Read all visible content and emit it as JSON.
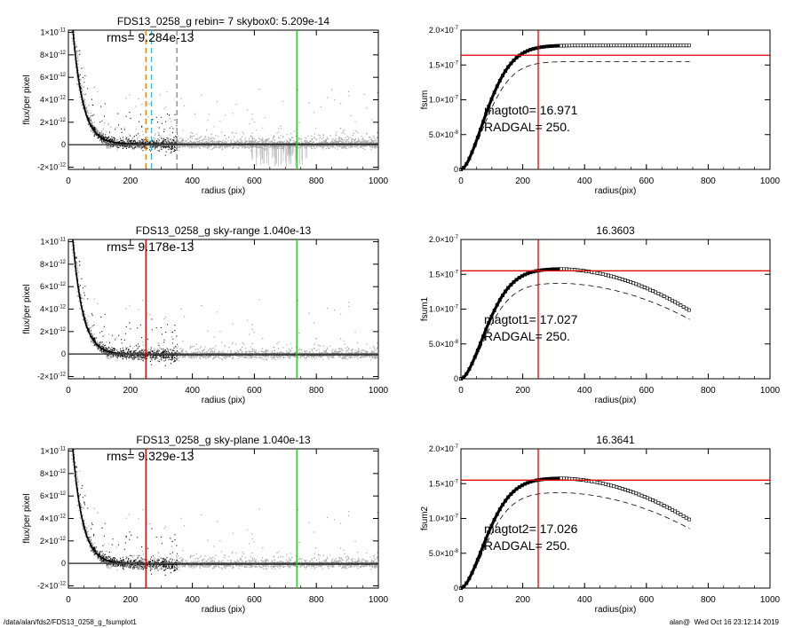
{
  "footer": {
    "path": "/data/alan/fds2/FDS13_0258_g_fsumplot1",
    "stamp": "alan@  Wed Oct 16 23:12:14 2019"
  },
  "chart_data": [
    {
      "type": "scatter",
      "title": "FDS13_0258_g rebin= 7    skybox0:  5.209e-14",
      "annotation": "rms= 9.284e-13",
      "xlabel": "radius (pix)",
      "ylabel": "flux/per pixel",
      "xlim": [
        0,
        1000
      ],
      "ylim": [
        -2.2e-12,
        1.02e-11
      ],
      "xticks": [
        "0",
        "200",
        "400",
        "600",
        "800",
        "1000"
      ],
      "yticks": [
        {
          "value": -2e-12,
          "mant": "-2×10",
          "exp": "-12"
        },
        {
          "value": 0,
          "mant": "0",
          "exp": ""
        },
        {
          "value": 2e-12,
          "mant": "2×10",
          "exp": "-12"
        },
        {
          "value": 4e-12,
          "mant": "4×10",
          "exp": "-12"
        },
        {
          "value": 6e-12,
          "mant": "6×10",
          "exp": "-12"
        },
        {
          "value": 8e-12,
          "mant": "8×10",
          "exp": "-12"
        },
        {
          "value": 1e-11,
          "mant": "1×10",
          "exp": "-11"
        }
      ],
      "profile": {
        "scale_length": 32,
        "amplitude": 1.6e-11,
        "offset": 5.2e-14
      },
      "vlines": [
        {
          "x": 250,
          "color": "#e07b00",
          "style": "dashed"
        },
        {
          "x": 268,
          "color": "#3bb8c9",
          "style": "dashed"
        },
        {
          "x": 350,
          "color": "#808080",
          "style": "dashed"
        },
        {
          "x": 737,
          "color": "#22cc22",
          "style": "solid"
        }
      ],
      "negative_spikes": true
    },
    {
      "type": "line",
      "title": "",
      "ylabel": "fsum",
      "xlabel": "radius(pix)",
      "xlim": [
        0,
        1000
      ],
      "ylim": [
        0,
        2e-07
      ],
      "xticks": [
        "0",
        "200",
        "400",
        "600",
        "800",
        "1000"
      ],
      "yticks": [
        {
          "value": 0,
          "mant": "0",
          "exp": ""
        },
        {
          "value": 5e-08,
          "mant": "5.0×10",
          "exp": "-8"
        },
        {
          "value": 1e-07,
          "mant": "1.0×10",
          "exp": "-7"
        },
        {
          "value": 1.5e-07,
          "mant": "1.5×10",
          "exp": "-7"
        },
        {
          "value": 2e-07,
          "mant": "2.0×10",
          "exp": "-7"
        }
      ],
      "curve": {
        "x_end": 740,
        "plateau": 1.78e-07,
        "decline": 0.0
      },
      "dashed_scale": 0.87,
      "hline": 1.64e-07,
      "vline": 250,
      "label1": "magtot0=  16.971",
      "label2": "RADGAL=    250."
    },
    {
      "type": "scatter",
      "title": "FDS13_0258_g sky-range  1.040e-13",
      "annotation": "rms= 9.178e-13",
      "xlabel": "radius (pix)",
      "ylabel": "flux/per pixel",
      "xlim": [
        0,
        1000
      ],
      "ylim": [
        -2.2e-12,
        1.02e-11
      ],
      "xticks": [
        "0",
        "200",
        "400",
        "600",
        "800",
        "1000"
      ],
      "yticks": [
        {
          "value": -2e-12,
          "mant": "-2×10",
          "exp": "-12"
        },
        {
          "value": 0,
          "mant": "0",
          "exp": ""
        },
        {
          "value": 2e-12,
          "mant": "2×10",
          "exp": "-12"
        },
        {
          "value": 4e-12,
          "mant": "4×10",
          "exp": "-12"
        },
        {
          "value": 6e-12,
          "mant": "6×10",
          "exp": "-12"
        },
        {
          "value": 8e-12,
          "mant": "8×10",
          "exp": "-12"
        },
        {
          "value": 1e-11,
          "mant": "1×10",
          "exp": "-11"
        }
      ],
      "profile": {
        "scale_length": 32,
        "amplitude": 1.6e-11,
        "offset": -5e-14
      },
      "vlines": [
        {
          "x": 250,
          "color": "#dd0000",
          "style": "solid"
        },
        {
          "x": 737,
          "color": "#22cc22",
          "style": "solid"
        }
      ],
      "negative_spikes": false
    },
    {
      "type": "line",
      "title": "16.3603",
      "ylabel": "fsum1",
      "xlabel": "radius(pix)",
      "xlim": [
        0,
        1000
      ],
      "ylim": [
        0,
        2e-07
      ],
      "xticks": [
        "0",
        "200",
        "400",
        "600",
        "800",
        "1000"
      ],
      "yticks": [
        {
          "value": 0,
          "mant": "0",
          "exp": ""
        },
        {
          "value": 5e-08,
          "mant": "5.0×10",
          "exp": "-8"
        },
        {
          "value": 1e-07,
          "mant": "1.0×10",
          "exp": "-7"
        },
        {
          "value": 1.5e-07,
          "mant": "1.5×10",
          "exp": "-7"
        },
        {
          "value": 2e-07,
          "mant": "2.0×10",
          "exp": "-7"
        }
      ],
      "curve": {
        "x_end": 740,
        "plateau": 1.58e-07,
        "decline": 6e-08
      },
      "dashed_scale": 0.87,
      "hline": 1.55e-07,
      "vline": 250,
      "label1": "magtot1=  17.027",
      "label2": "RADGAL=    250."
    },
    {
      "type": "scatter",
      "title": "FDS13_0258_g sky-plane  1.040e-13",
      "annotation": "rms= 9.329e-13",
      "xlabel": "radius (pix)",
      "ylabel": "flux/per pixel",
      "xlim": [
        0,
        1000
      ],
      "ylim": [
        -2.2e-12,
        1.02e-11
      ],
      "xticks": [
        "0",
        "200",
        "400",
        "600",
        "800",
        "1000"
      ],
      "yticks": [
        {
          "value": -2e-12,
          "mant": "-2×10",
          "exp": "-12"
        },
        {
          "value": 0,
          "mant": "0",
          "exp": ""
        },
        {
          "value": 2e-12,
          "mant": "2×10",
          "exp": "-12"
        },
        {
          "value": 4e-12,
          "mant": "4×10",
          "exp": "-12"
        },
        {
          "value": 6e-12,
          "mant": "6×10",
          "exp": "-12"
        },
        {
          "value": 8e-12,
          "mant": "8×10",
          "exp": "-12"
        },
        {
          "value": 1e-11,
          "mant": "1×10",
          "exp": "-11"
        }
      ],
      "profile": {
        "scale_length": 32,
        "amplitude": 1.6e-11,
        "offset": -5e-14
      },
      "vlines": [
        {
          "x": 250,
          "color": "#dd0000",
          "style": "solid"
        },
        {
          "x": 737,
          "color": "#22cc22",
          "style": "solid"
        }
      ],
      "negative_spikes": false
    },
    {
      "type": "line",
      "title": "16.3641",
      "ylabel": "fsum2",
      "xlabel": "radius(pix)",
      "xlim": [
        0,
        1000
      ],
      "ylim": [
        0,
        2e-07
      ],
      "xticks": [
        "0",
        "200",
        "400",
        "600",
        "800",
        "1000"
      ],
      "yticks": [
        {
          "value": 0,
          "mant": "0",
          "exp": ""
        },
        {
          "value": 5e-08,
          "mant": "5.0×10",
          "exp": "-8"
        },
        {
          "value": 1e-07,
          "mant": "1.0×10",
          "exp": "-7"
        },
        {
          "value": 1.5e-07,
          "mant": "1.5×10",
          "exp": "-7"
        },
        {
          "value": 2e-07,
          "mant": "2.0×10",
          "exp": "-7"
        }
      ],
      "curve": {
        "x_end": 740,
        "plateau": 1.58e-07,
        "decline": 6e-08
      },
      "dashed_scale": 0.87,
      "hline": 1.55e-07,
      "vline": 250,
      "label1": "magtot2=  17.026",
      "label2": "RADGAL=    250."
    }
  ]
}
